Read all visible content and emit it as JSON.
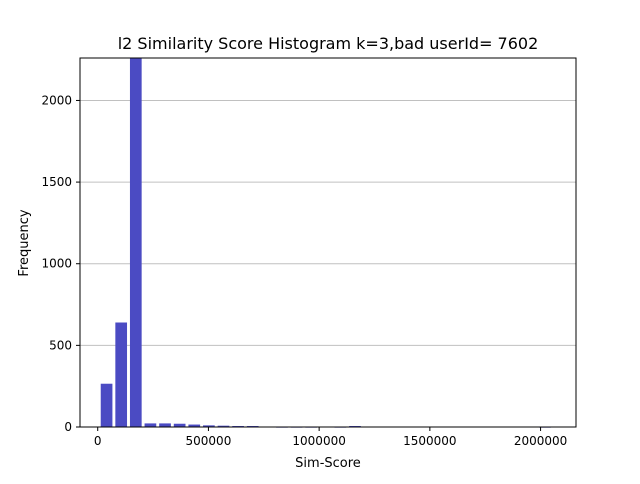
{
  "chart_data": {
    "type": "bar",
    "title": "l2 Similarity Score Histogram k=3,bad userId= 7602",
    "xlabel": "Sim-Score",
    "ylabel": "Frequency",
    "xlim": [
      -80000,
      2160000
    ],
    "ylim": [
      0,
      2260
    ],
    "bin_width": 66000,
    "x": [
      40000,
      106000,
      172000,
      238000,
      304000,
      370000,
      436000,
      502000,
      568000,
      634000,
      700000,
      766000,
      832000,
      898000,
      964000,
      1030000,
      1096000,
      1162000,
      1228000,
      1294000,
      1360000,
      1426000,
      1492000,
      1558000,
      1624000,
      1690000,
      1756000,
      1822000,
      1888000,
      1954000,
      2020000
    ],
    "values": [
      265,
      640,
      2260,
      22,
      22,
      20,
      15,
      10,
      8,
      6,
      6,
      2,
      1,
      1,
      1,
      0,
      1,
      6,
      0,
      0,
      0,
      0,
      0,
      0,
      0,
      0,
      0,
      0,
      0,
      0,
      1
    ],
    "xticks": [
      0,
      500000,
      1000000,
      1500000,
      2000000
    ],
    "xtick_labels": [
      "0",
      "500000",
      "1000000",
      "1500000",
      "2000000"
    ],
    "yticks": [
      0,
      500,
      1000,
      1500,
      2000
    ],
    "ytick_labels": [
      "0",
      "500",
      "1000",
      "1500",
      "2000"
    ],
    "grid": "horizontal",
    "bar_color": "#4b4bc3",
    "grid_color": "#c0c0c0"
  }
}
